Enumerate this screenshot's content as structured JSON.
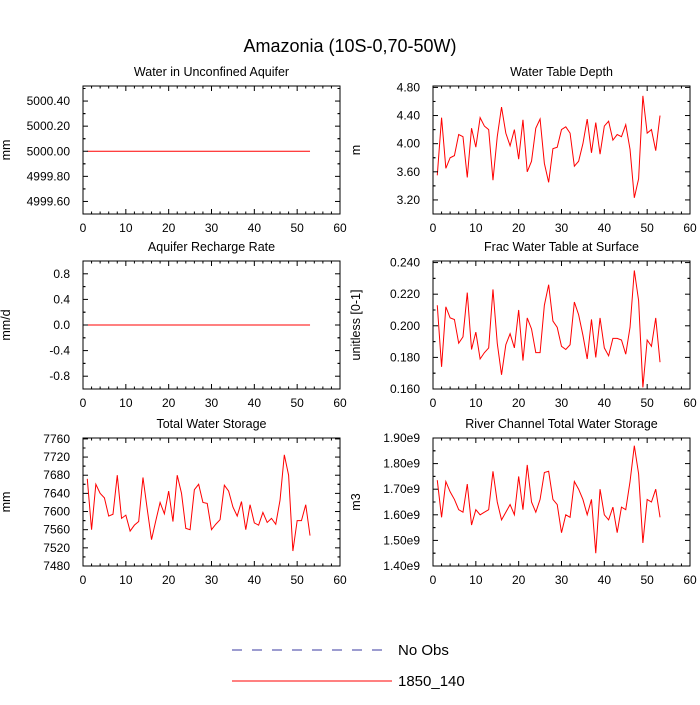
{
  "figure_title": "Amazonia (10S-0,70-50W)",
  "legend": [
    {
      "label": "No Obs",
      "color": "#3a3aa0",
      "dash": true
    },
    {
      "label": "1850_140",
      "color": "#ff0000",
      "dash": false
    }
  ],
  "chart_data": [
    {
      "type": "line",
      "title": "Water in Unconfined Aquifer",
      "ylabel": "mm",
      "xlim": [
        0,
        60
      ],
      "xticks": [
        0,
        10,
        20,
        30,
        40,
        50,
        60
      ],
      "ylim": [
        4999.5,
        5000.52
      ],
      "yticks": [
        4999.6,
        4999.8,
        5000.0,
        5000.2,
        5000.4
      ],
      "ytick_labels": [
        "4999.60",
        "4999.80",
        "5000.00",
        "5000.20",
        "5000.40"
      ],
      "x_start": 1,
      "series": [
        {
          "name": "1850_140",
          "color": "#ff0000",
          "values": [
            5000,
            5000,
            5000,
            5000,
            5000,
            5000,
            5000,
            5000,
            5000,
            5000,
            5000,
            5000,
            5000,
            5000,
            5000,
            5000,
            5000,
            5000,
            5000,
            5000,
            5000,
            5000,
            5000,
            5000,
            5000,
            5000,
            5000,
            5000,
            5000,
            5000,
            5000,
            5000,
            5000,
            5000,
            5000,
            5000,
            5000,
            5000,
            5000,
            5000,
            5000,
            5000,
            5000,
            5000,
            5000,
            5000,
            5000,
            5000,
            5000,
            5000,
            5000,
            5000,
            5000
          ]
        }
      ]
    },
    {
      "type": "line",
      "title": "Water Table Depth",
      "ylabel": "m",
      "xlim": [
        0,
        60
      ],
      "xticks": [
        0,
        10,
        20,
        30,
        40,
        50,
        60
      ],
      "ylim": [
        3.0,
        4.82
      ],
      "yticks": [
        3.2,
        3.6,
        4.0,
        4.4,
        4.8
      ],
      "ytick_labels": [
        "3.20",
        "3.60",
        "4.00",
        "4.40",
        "4.80"
      ],
      "x_start": 1,
      "series": [
        {
          "name": "1850_140",
          "color": "#ff0000",
          "values": [
            3.55,
            4.37,
            3.65,
            3.8,
            3.83,
            4.13,
            4.1,
            3.52,
            4.22,
            3.95,
            4.37,
            4.25,
            4.2,
            3.48,
            4.1,
            4.52,
            4.15,
            3.97,
            4.2,
            3.78,
            4.34,
            3.6,
            3.75,
            4.22,
            4.35,
            3.72,
            3.45,
            3.93,
            3.95,
            4.2,
            4.24,
            4.15,
            3.68,
            3.75,
            4.0,
            4.35,
            3.87,
            4.3,
            3.85,
            4.25,
            4.32,
            4.05,
            4.13,
            4.1,
            4.27,
            3.92,
            3.23,
            3.5,
            4.68,
            4.15,
            4.2,
            3.9,
            4.4
          ]
        }
      ]
    },
    {
      "type": "line",
      "title": "Aquifer Recharge Rate",
      "ylabel": "mm/d",
      "xlim": [
        0,
        60
      ],
      "xticks": [
        0,
        10,
        20,
        30,
        40,
        50,
        60
      ],
      "ylim": [
        -1.0,
        1.0
      ],
      "yticks": [
        -0.8,
        -0.4,
        0.0,
        0.4,
        0.8
      ],
      "ytick_labels": [
        "-0.8",
        "-0.4",
        "0.0",
        "0.4",
        "0.8"
      ],
      "x_start": 1,
      "series": [
        {
          "name": "1850_140",
          "color": "#ff0000",
          "values": [
            0,
            0,
            0,
            0,
            0,
            0,
            0,
            0,
            0,
            0,
            0,
            0,
            0,
            0,
            0,
            0,
            0,
            0,
            0,
            0,
            0,
            0,
            0,
            0,
            0,
            0,
            0,
            0,
            0,
            0,
            0,
            0,
            0,
            0,
            0,
            0,
            0,
            0,
            0,
            0,
            0,
            0,
            0,
            0,
            0,
            0,
            0,
            0,
            0,
            0,
            0,
            0,
            0
          ]
        }
      ]
    },
    {
      "type": "line",
      "title": "Frac Water Table at Surface",
      "ylabel": "unitless [0-1]",
      "xlim": [
        0,
        60
      ],
      "xticks": [
        0,
        10,
        20,
        30,
        40,
        50,
        60
      ],
      "ylim": [
        0.16,
        0.241
      ],
      "yticks": [
        0.16,
        0.18,
        0.2,
        0.22,
        0.24
      ],
      "ytick_labels": [
        "0.160",
        "0.180",
        "0.200",
        "0.220",
        "0.240"
      ],
      "x_start": 1,
      "series": [
        {
          "name": "1850_140",
          "color": "#ff0000",
          "values": [
            0.213,
            0.174,
            0.212,
            0.205,
            0.204,
            0.189,
            0.193,
            0.221,
            0.185,
            0.196,
            0.179,
            0.183,
            0.186,
            0.223,
            0.189,
            0.169,
            0.188,
            0.195,
            0.186,
            0.21,
            0.178,
            0.205,
            0.198,
            0.183,
            0.183,
            0.213,
            0.226,
            0.203,
            0.199,
            0.187,
            0.185,
            0.188,
            0.215,
            0.207,
            0.194,
            0.179,
            0.204,
            0.18,
            0.205,
            0.186,
            0.181,
            0.192,
            0.192,
            0.191,
            0.182,
            0.199,
            0.235,
            0.216,
            0.161,
            0.191,
            0.187,
            0.205,
            0.177
          ]
        }
      ]
    },
    {
      "type": "line",
      "title": "Total Water Storage",
      "ylabel": "mm",
      "xlim": [
        0,
        60
      ],
      "xticks": [
        0,
        10,
        20,
        30,
        40,
        50,
        60
      ],
      "ylim": [
        7480,
        7762
      ],
      "yticks": [
        7480,
        7520,
        7560,
        7600,
        7640,
        7680,
        7720,
        7760
      ],
      "ytick_labels": [
        "7480",
        "7520",
        "7560",
        "7600",
        "7640",
        "7680",
        "7720",
        "7760"
      ],
      "x_start": 1,
      "series": [
        {
          "name": "1850_140",
          "color": "#ff0000",
          "values": [
            7672,
            7560,
            7660,
            7640,
            7630,
            7590,
            7594,
            7680,
            7585,
            7592,
            7557,
            7570,
            7578,
            7675,
            7605,
            7538,
            7580,
            7620,
            7595,
            7645,
            7578,
            7680,
            7640,
            7563,
            7560,
            7648,
            7660,
            7620,
            7618,
            7560,
            7572,
            7582,
            7658,
            7645,
            7610,
            7590,
            7622,
            7560,
            7615,
            7575,
            7570,
            7598,
            7576,
            7585,
            7572,
            7625,
            7725,
            7680,
            7513,
            7580,
            7580,
            7615,
            7547
          ]
        }
      ]
    },
    {
      "type": "line",
      "title": "River Channel Total Water Storage",
      "ylabel": "m3",
      "xlim": [
        0,
        60
      ],
      "xticks": [
        0,
        10,
        20,
        30,
        40,
        50,
        60
      ],
      "ylim": [
        1400000000.0,
        1900000000.0
      ],
      "yticks": [
        1400000000.0,
        1500000000.0,
        1600000000.0,
        1700000000.0,
        1800000000.0,
        1900000000.0
      ],
      "ytick_labels": [
        "1.40e9",
        "1.50e9",
        "1.60e9",
        "1.70e9",
        "1.80e9",
        "1.90e9"
      ],
      "x_start": 1,
      "series": [
        {
          "name": "1850_140",
          "color": "#ff0000",
          "values": [
            1735000000.0,
            1590000000.0,
            1730000000.0,
            1690000000.0,
            1660000000.0,
            1620000000.0,
            1610000000.0,
            1720000000.0,
            1560000000.0,
            1620000000.0,
            1600000000.0,
            1610000000.0,
            1620000000.0,
            1770000000.0,
            1650000000.0,
            1580000000.0,
            1610000000.0,
            1640000000.0,
            1600000000.0,
            1750000000.0,
            1620000000.0,
            1795000000.0,
            1650000000.0,
            1610000000.0,
            1660000000.0,
            1765000000.0,
            1770000000.0,
            1660000000.0,
            1640000000.0,
            1530000000.0,
            1600000000.0,
            1590000000.0,
            1730000000.0,
            1700000000.0,
            1660000000.0,
            1600000000.0,
            1660000000.0,
            1450000000.0,
            1700000000.0,
            1600000000.0,
            1580000000.0,
            1630000000.0,
            1530000000.0,
            1630000000.0,
            1620000000.0,
            1730000000.0,
            1870000000.0,
            1760000000.0,
            1490000000.0,
            1660000000.0,
            1650000000.0,
            1700000000.0,
            1590000000.0
          ]
        }
      ]
    }
  ]
}
